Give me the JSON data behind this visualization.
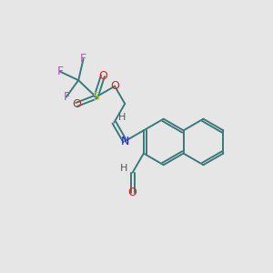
{
  "background_color": "#e6e6e6",
  "bond_color": "#3a7a7a",
  "atom_colors": {
    "F": "#cc44cc",
    "S": "#cccc00",
    "O": "#dd2222",
    "N": "#2222cc",
    "H_dark": "#555555"
  },
  "figsize": [
    3.0,
    3.0
  ],
  "dpi": 100
}
